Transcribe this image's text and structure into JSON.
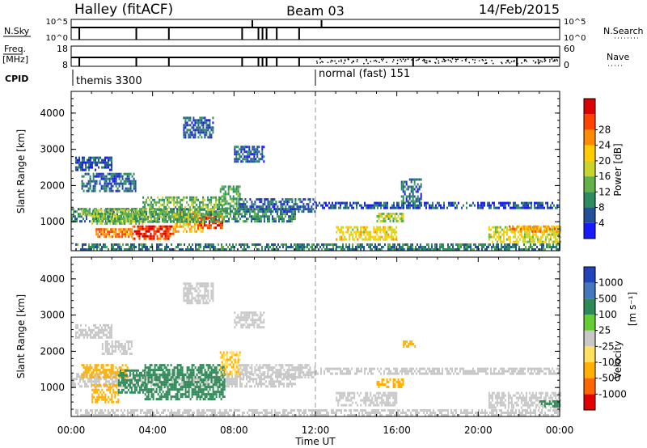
{
  "header": {
    "station": "Halley (fitACF)",
    "beam": "Beam 03",
    "date": "14/Feb/2015"
  },
  "strips": {
    "nsky_label": "N.Sky",
    "nsky_ticks": [
      "10^5",
      "10^0"
    ],
    "nsearch_label": "N.Search",
    "nsearch_ticks": [
      "10^5",
      "10^0"
    ],
    "freq_label": "Freq.",
    "freq_unit": "[MHz]",
    "freq_ticks": [
      "18",
      "8"
    ],
    "nave_label": "Nave",
    "nave_ticks": [
      "60",
      "0"
    ],
    "cpid_label": "CPID",
    "cpid_modes": [
      "themis 3300",
      "normal (fast) 151"
    ],
    "cpid_change_hour": 12
  },
  "colors": {
    "power_scale": [
      "#1a1aff",
      "#24509a",
      "#2d8d61",
      "#63b14a",
      "#c9d42c",
      "#ffcc00",
      "#ff8c00",
      "#ff4400",
      "#dd0000"
    ],
    "velocity_scale": [
      "#e00000",
      "#ff6600",
      "#ffb000",
      "#ffe060",
      "#c8c8c8",
      "#66cc33",
      "#2e8b57",
      "#4477bb",
      "#2244bb"
    ]
  },
  "power_colorbar": {
    "label": "Power [dB]",
    "ticks": [
      "4",
      "8",
      "12",
      "16",
      "20",
      "24",
      "28"
    ]
  },
  "velocity_colorbar": {
    "label_main": "Velocity",
    "label_unit": "[m s⁻¹]",
    "ticks": [
      "-1000",
      "-500",
      "-100",
      "-25",
      "25",
      "100",
      "500",
      "1000"
    ]
  },
  "chart_data": [
    {
      "type": "heatmap",
      "name": "power",
      "title": "",
      "xlabel": "",
      "ylabel": "Slant Range [km]",
      "xlim": [
        0,
        24
      ],
      "ylim": [
        200,
        4600
      ],
      "yticks": [
        1000,
        2000,
        3000,
        4000
      ],
      "zlabel": "Power [dB]",
      "zlim": [
        0,
        32
      ],
      "regions": [
        {
          "x": [
            0.2,
            2.0
          ],
          "y": [
            2450,
            2800
          ],
          "v": 5
        },
        {
          "x": [
            0.5,
            3.2
          ],
          "y": [
            1850,
            2350
          ],
          "v": 6
        },
        {
          "x": [
            0.0,
            11.0
          ],
          "y": [
            1000,
            1380
          ],
          "v": 9
        },
        {
          "x": [
            0.5,
            3.5
          ],
          "y": [
            1200,
            1350
          ],
          "v": 14
        },
        {
          "x": [
            1.0,
            3.5
          ],
          "y": [
            950,
            1250
          ],
          "v": 13
        },
        {
          "x": [
            1.2,
            3.0
          ],
          "y": [
            600,
            820
          ],
          "v": 24
        },
        {
          "x": [
            3.0,
            5.0
          ],
          "y": [
            550,
            900
          ],
          "v": 28
        },
        {
          "x": [
            5.0,
            6.5
          ],
          "y": [
            700,
            1300
          ],
          "v": 20
        },
        {
          "x": [
            6.2,
            7.4
          ],
          "y": [
            850,
            1200
          ],
          "v": 27
        },
        {
          "x": [
            3.5,
            7.5
          ],
          "y": [
            1000,
            1700
          ],
          "v": 12
        },
        {
          "x": [
            7.3,
            8.3
          ],
          "y": [
            1250,
            2000
          ],
          "v": 11
        },
        {
          "x": [
            5.5,
            7.0
          ],
          "y": [
            3300,
            3900
          ],
          "v": 6
        },
        {
          "x": [
            8.0,
            9.5
          ],
          "y": [
            2650,
            3100
          ],
          "v": 6
        },
        {
          "x": [
            8.2,
            12.0
          ],
          "y": [
            1250,
            1650
          ],
          "v": 6
        },
        {
          "x": [
            12.0,
            24.0
          ],
          "y": [
            1350,
            1550
          ],
          "v": 5
        },
        {
          "x": [
            0.2,
            24.0
          ],
          "y": [
            250,
            400
          ],
          "v": 8
        },
        {
          "x": [
            13.0,
            16.0
          ],
          "y": [
            500,
            880
          ],
          "v": 18
        },
        {
          "x": [
            15.0,
            16.3
          ],
          "y": [
            1000,
            1250
          ],
          "v": 14
        },
        {
          "x": [
            16.2,
            17.2
          ],
          "y": [
            1550,
            2200
          ],
          "v": 7
        },
        {
          "x": [
            20.5,
            24.0
          ],
          "y": [
            450,
            880
          ],
          "v": 17
        },
        {
          "x": [
            21.5,
            24.0
          ],
          "y": [
            700,
            900
          ],
          "v": 22
        }
      ]
    },
    {
      "type": "heatmap",
      "name": "velocity",
      "title": "",
      "xlabel": "Time UT",
      "ylabel": "Slant Range [km]",
      "xlim": [
        0,
        24
      ],
      "ylim": [
        200,
        4600
      ],
      "yticks": [
        1000,
        2000,
        3000,
        4000
      ],
      "xticks": [
        "00:00",
        "04:00",
        "08:00",
        "12:00",
        "16:00",
        "20:00",
        "00:00"
      ],
      "zlabel": "Velocity [m s⁻¹]",
      "zlim": [
        -1000,
        1000
      ],
      "regions": [
        {
          "x": [
            0.2,
            2.0
          ],
          "y": [
            2400,
            2750
          ],
          "v": 0
        },
        {
          "x": [
            1.5,
            3.0
          ],
          "y": [
            1900,
            2300
          ],
          "v": 0
        },
        {
          "x": [
            0.0,
            11.0
          ],
          "y": [
            1000,
            1400
          ],
          "v": 0
        },
        {
          "x": [
            0.5,
            2.8
          ],
          "y": [
            1250,
            1650
          ],
          "v": -400
        },
        {
          "x": [
            1.0,
            2.3
          ],
          "y": [
            600,
            1100
          ],
          "v": -200
        },
        {
          "x": [
            2.3,
            3.6
          ],
          "y": [
            850,
            1500
          ],
          "v": 150
        },
        {
          "x": [
            3.6,
            7.5
          ],
          "y": [
            700,
            1650
          ],
          "v": 200
        },
        {
          "x": [
            7.3,
            8.3
          ],
          "y": [
            1350,
            2000
          ],
          "v": -100
        },
        {
          "x": [
            5.5,
            7.0
          ],
          "y": [
            3300,
            3900
          ],
          "v": 0
        },
        {
          "x": [
            8.0,
            9.5
          ],
          "y": [
            2650,
            3100
          ],
          "v": 0
        },
        {
          "x": [
            8.2,
            12.0
          ],
          "y": [
            1250,
            1650
          ],
          "v": 0
        },
        {
          "x": [
            12.0,
            24.0
          ],
          "y": [
            1350,
            1550
          ],
          "v": 0
        },
        {
          "x": [
            0.2,
            24.0
          ],
          "y": [
            250,
            400
          ],
          "v": 0
        },
        {
          "x": [
            13.0,
            16.0
          ],
          "y": [
            500,
            880
          ],
          "v": 0
        },
        {
          "x": [
            15.0,
            16.3
          ],
          "y": [
            1000,
            1250
          ],
          "v": -150
        },
        {
          "x": [
            16.3,
            17.0
          ],
          "y": [
            2100,
            2300
          ],
          "v": -150
        },
        {
          "x": [
            20.5,
            24.0
          ],
          "y": [
            450,
            880
          ],
          "v": 0
        },
        {
          "x": [
            23.0,
            24.0
          ],
          "y": [
            450,
            650
          ],
          "v": 150
        }
      ]
    }
  ]
}
